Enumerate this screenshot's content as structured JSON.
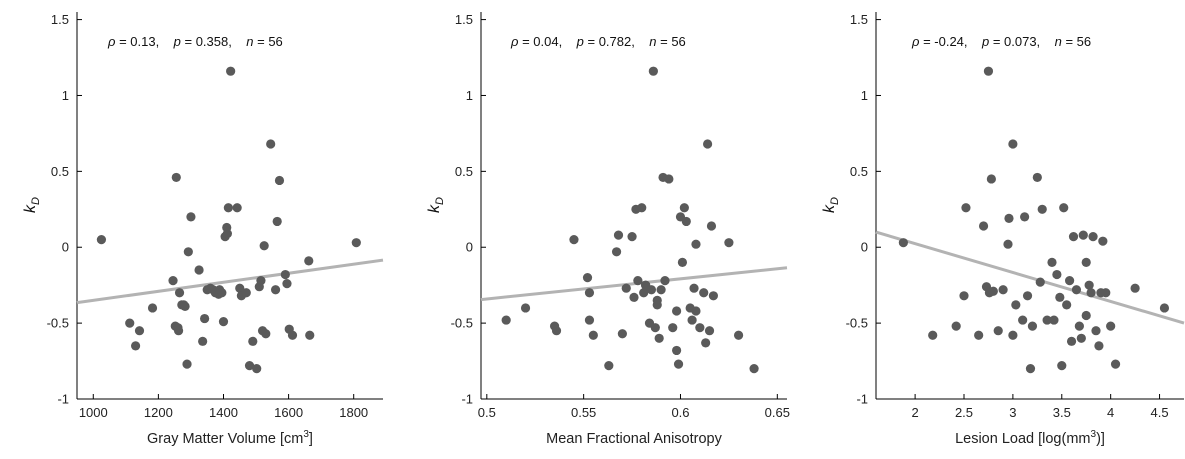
{
  "chart_data": [
    {
      "type": "scatter",
      "panel_id": "panel-gray-matter",
      "xlabel_prefix": "Gray Matter Volume [cm",
      "xlabel_sup": "3",
      "xlabel_suffix": "]",
      "ylabel_main": "k",
      "ylabel_sub": "D",
      "xlim": [
        950,
        1890
      ],
      "ylim": [
        -1,
        1.55
      ],
      "xticks": [
        1000,
        1200,
        1400,
        1600,
        1800
      ],
      "xtick_labels": [
        "1000",
        "1200",
        "1400",
        "1600",
        "1800"
      ],
      "yticks": [
        -1,
        -0.5,
        0,
        0.5,
        1,
        1.5
      ],
      "ytick_labels": [
        "-1",
        "-0.5",
        "0",
        "0.5",
        "1",
        "1.5"
      ],
      "stats": {
        "rho_symbol": "ρ",
        "rho": "0.13",
        "p_symbol": "p",
        "p": "0.358",
        "n_symbol": "n",
        "n": "56"
      },
      "fit_line": {
        "x": [
          950,
          1890
        ],
        "y": [
          -0.365,
          -0.085
        ]
      },
      "points": {
        "x": [
          1025,
          1112,
          1130,
          1142,
          1182,
          1245,
          1252,
          1255,
          1260,
          1262,
          1265,
          1272,
          1278,
          1282,
          1288,
          1292,
          1300,
          1325,
          1336,
          1342,
          1350,
          1360,
          1368,
          1375,
          1385,
          1388,
          1395,
          1400,
          1405,
          1410,
          1412,
          1415,
          1422,
          1442,
          1450,
          1455,
          1470,
          1480,
          1490,
          1502,
          1510,
          1515,
          1520,
          1525,
          1530,
          1545,
          1560,
          1565,
          1572,
          1590,
          1595,
          1602,
          1612,
          1662,
          1665,
          1808
        ],
        "y": [
          0.05,
          -0.5,
          -0.65,
          -0.55,
          -0.4,
          -0.22,
          -0.52,
          0.46,
          -0.53,
          -0.55,
          -0.3,
          -0.38,
          -0.38,
          -0.39,
          -0.77,
          -0.03,
          0.2,
          -0.15,
          -0.62,
          -0.47,
          -0.28,
          -0.27,
          -0.28,
          -0.3,
          -0.31,
          -0.28,
          -0.3,
          -0.49,
          0.07,
          0.13,
          0.09,
          0.26,
          1.16,
          0.26,
          -0.27,
          -0.32,
          -0.3,
          -0.78,
          -0.62,
          -0.8,
          -0.26,
          -0.22,
          -0.55,
          0.01,
          -0.57,
          0.68,
          -0.28,
          0.17,
          0.44,
          -0.18,
          -0.24,
          -0.54,
          -0.58,
          -0.09,
          -0.58,
          0.03
        ]
      }
    },
    {
      "type": "scatter",
      "panel_id": "panel-fa",
      "xlabel_prefix": "Mean Fractional Anisotropy",
      "xlabel_sup": "",
      "xlabel_suffix": "",
      "ylabel_main": "k",
      "ylabel_sub": "D",
      "xlim": [
        0.497,
        0.655
      ],
      "ylim": [
        -1,
        1.55
      ],
      "xticks": [
        0.5,
        0.55,
        0.6,
        0.65
      ],
      "xtick_labels": [
        "0.5",
        "0.55",
        "0.6",
        "0.65"
      ],
      "yticks": [
        -1,
        -0.5,
        0,
        0.5,
        1,
        1.5
      ],
      "ytick_labels": [
        "-1",
        "-0.5",
        "0",
        "0.5",
        "1",
        "1.5"
      ],
      "stats": {
        "rho_symbol": "ρ",
        "rho": "0.04",
        "p_symbol": "p",
        "p": "0.782",
        "n_symbol": "n",
        "n": "56"
      },
      "fit_line": {
        "x": [
          0.497,
          0.655
        ],
        "y": [
          -0.345,
          -0.135
        ]
      },
      "points": {
        "x": [
          0.51,
          0.52,
          0.535,
          0.536,
          0.545,
          0.552,
          0.553,
          0.553,
          0.555,
          0.563,
          0.567,
          0.568,
          0.57,
          0.572,
          0.575,
          0.576,
          0.577,
          0.578,
          0.58,
          0.581,
          0.582,
          0.582,
          0.584,
          0.585,
          0.586,
          0.587,
          0.588,
          0.588,
          0.589,
          0.59,
          0.591,
          0.592,
          0.594,
          0.596,
          0.598,
          0.598,
          0.599,
          0.6,
          0.601,
          0.602,
          0.603,
          0.605,
          0.606,
          0.607,
          0.608,
          0.608,
          0.61,
          0.612,
          0.613,
          0.614,
          0.615,
          0.616,
          0.617,
          0.625,
          0.63,
          0.638
        ],
        "y": [
          -0.48,
          -0.4,
          -0.52,
          -0.55,
          0.05,
          -0.2,
          -0.48,
          -0.3,
          -0.58,
          -0.78,
          -0.03,
          0.08,
          -0.57,
          -0.27,
          0.07,
          -0.33,
          0.25,
          -0.22,
          0.26,
          -0.3,
          -0.25,
          -0.25,
          -0.5,
          -0.28,
          1.16,
          -0.53,
          -0.35,
          -0.38,
          -0.6,
          -0.28,
          0.46,
          -0.22,
          0.45,
          -0.53,
          -0.68,
          -0.42,
          -0.77,
          0.2,
          -0.1,
          0.26,
          0.17,
          -0.4,
          -0.48,
          -0.27,
          -0.42,
          0.02,
          -0.53,
          -0.3,
          -0.63,
          0.68,
          -0.55,
          0.14,
          -0.32,
          0.03,
          -0.58,
          -0.8
        ]
      }
    },
    {
      "type": "scatter",
      "panel_id": "panel-lesion",
      "xlabel_prefix": "Lesion Load [log(mm",
      "xlabel_sup": "3",
      "xlabel_suffix": ")]",
      "ylabel_main": "k",
      "ylabel_sub": "D",
      "xlim": [
        1.6,
        4.75
      ],
      "ylim": [
        -1,
        1.55
      ],
      "xticks": [
        2,
        2.5,
        3,
        3.5,
        4,
        4.5
      ],
      "xtick_labels": [
        "2",
        "2.5",
        "3",
        "3.5",
        "4",
        "4.5"
      ],
      "yticks": [
        -1,
        -0.5,
        0,
        0.5,
        1,
        1.5
      ],
      "ytick_labels": [
        "-1",
        "-0.5",
        "0",
        "0.5",
        "1",
        "1.5"
      ],
      "stats": {
        "rho_symbol": "ρ",
        "rho": "-0.24",
        "p_symbol": "p",
        "p": "0.073",
        "n_symbol": "n",
        "n": "56"
      },
      "fit_line": {
        "x": [
          1.6,
          4.75
        ],
        "y": [
          0.1,
          -0.5
        ]
      },
      "points": {
        "x": [
          1.88,
          2.18,
          2.42,
          2.5,
          2.52,
          2.65,
          2.7,
          2.73,
          2.75,
          2.76,
          2.78,
          2.8,
          2.85,
          2.9,
          2.95,
          2.96,
          3.0,
          3.0,
          3.03,
          3.1,
          3.12,
          3.15,
          3.18,
          3.2,
          3.25,
          3.28,
          3.3,
          3.35,
          3.4,
          3.42,
          3.45,
          3.48,
          3.5,
          3.52,
          3.55,
          3.58,
          3.6,
          3.62,
          3.65,
          3.68,
          3.7,
          3.72,
          3.75,
          3.75,
          3.78,
          3.8,
          3.82,
          3.85,
          3.88,
          3.9,
          3.92,
          3.95,
          4.0,
          4.05,
          4.25,
          4.55
        ],
        "y": [
          0.03,
          -0.58,
          -0.52,
          -0.32,
          0.26,
          -0.58,
          0.14,
          -0.26,
          1.16,
          -0.3,
          0.45,
          -0.29,
          -0.55,
          -0.28,
          0.02,
          0.19,
          0.68,
          -0.58,
          -0.38,
          -0.48,
          0.2,
          -0.32,
          -0.8,
          -0.52,
          0.46,
          -0.23,
          0.25,
          -0.48,
          -0.1,
          -0.48,
          -0.18,
          -0.33,
          -0.78,
          0.26,
          -0.38,
          -0.22,
          -0.62,
          0.07,
          -0.28,
          -0.52,
          -0.6,
          0.08,
          -0.45,
          -0.1,
          -0.25,
          -0.3,
          0.07,
          -0.55,
          -0.65,
          -0.3,
          0.04,
          -0.3,
          -0.52,
          -0.77,
          -0.27,
          -0.4
        ]
      }
    }
  ]
}
